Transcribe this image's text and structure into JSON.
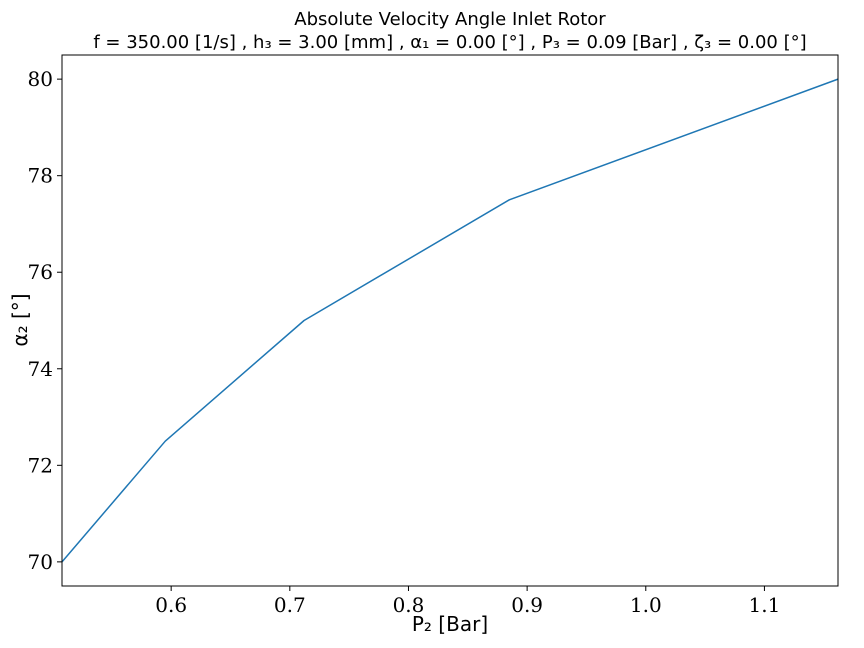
{
  "chart_data": {
    "type": "line",
    "title": "Absolute Velocity Angle Inlet Rotor",
    "subtitle": "f = 350.00 [1/s] , h₃ = 3.00 [mm] , α₁ = 0.00 [°] , P₃ = 0.09 [Bar] , ζ₃ = 0.00 [°]",
    "xlabel": "P₂ [Bar]",
    "ylabel": "α₂ [°]",
    "xlim": [
      0.508,
      1.162
    ],
    "ylim": [
      69.5,
      80.5
    ],
    "xticks": [
      0.6,
      0.7,
      0.8,
      0.9,
      1.0,
      1.1
    ],
    "xtick_labels": [
      "0.6",
      "0.7",
      "0.8",
      "0.9",
      "1.0",
      "1.1"
    ],
    "yticks": [
      70,
      72,
      74,
      76,
      78,
      80
    ],
    "ytick_labels": [
      "70",
      "72",
      "74",
      "76",
      "78",
      "80"
    ],
    "grid": false,
    "series": [
      {
        "color": "#1f77b4",
        "x": [
          0.508,
          0.595,
          0.712,
          0.885,
          1.162
        ],
        "y": [
          70.0,
          72.5,
          75.0,
          77.5,
          80.0
        ]
      }
    ]
  }
}
